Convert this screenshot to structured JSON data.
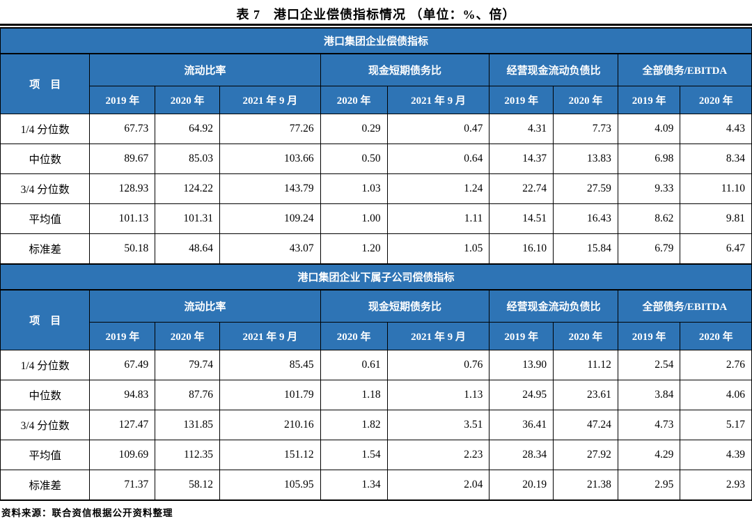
{
  "title": "表 7　港口企业偿债指标情况 （单位：%、倍）",
  "source": "资料来源：联合资信根据公开资料整理",
  "colors": {
    "header_blue": "#2E74B5",
    "border": "#000000",
    "header_text": "#FFFFFF"
  },
  "columns": {
    "item": "项　目",
    "groups": [
      {
        "label": "流动比率",
        "years": [
          "2019 年",
          "2020 年",
          "2021 年 9 月"
        ]
      },
      {
        "label": "现金短期债务比",
        "years": [
          "2020 年",
          "2021 年 9 月"
        ]
      },
      {
        "label": "经营现金流动负债比",
        "years": [
          "2019 年",
          "2020 年"
        ]
      },
      {
        "label": "全部债务/EBITDA",
        "years": [
          "2019 年",
          "2020 年"
        ]
      }
    ]
  },
  "sections": [
    {
      "header": "港口集团企业偿债指标",
      "rows": [
        {
          "label": "1/4 分位数",
          "values": [
            "67.73",
            "64.92",
            "77.26",
            "0.29",
            "0.47",
            "4.31",
            "7.73",
            "4.09",
            "4.43"
          ]
        },
        {
          "label": "中位数",
          "values": [
            "89.67",
            "85.03",
            "103.66",
            "0.50",
            "0.64",
            "14.37",
            "13.83",
            "6.98",
            "8.34"
          ]
        },
        {
          "label": "3/4 分位数",
          "values": [
            "128.93",
            "124.22",
            "143.79",
            "1.03",
            "1.24",
            "22.74",
            "27.59",
            "9.33",
            "11.10"
          ]
        },
        {
          "label": "平均值",
          "values": [
            "101.13",
            "101.31",
            "109.24",
            "1.00",
            "1.11",
            "14.51",
            "16.43",
            "8.62",
            "9.81"
          ]
        },
        {
          "label": "标准差",
          "values": [
            "50.18",
            "48.64",
            "43.07",
            "1.20",
            "1.05",
            "16.10",
            "15.84",
            "6.79",
            "6.47"
          ]
        }
      ]
    },
    {
      "header": "港口集团企业下属子公司偿债指标",
      "rows": [
        {
          "label": "1/4 分位数",
          "values": [
            "67.49",
            "79.74",
            "85.45",
            "0.61",
            "0.76",
            "13.90",
            "11.12",
            "2.54",
            "2.76"
          ]
        },
        {
          "label": "中位数",
          "values": [
            "94.83",
            "87.76",
            "101.79",
            "1.18",
            "1.13",
            "24.95",
            "23.61",
            "3.84",
            "4.06"
          ]
        },
        {
          "label": "3/4 分位数",
          "values": [
            "127.47",
            "131.85",
            "210.16",
            "1.82",
            "3.51",
            "36.41",
            "47.24",
            "4.73",
            "5.17"
          ]
        },
        {
          "label": "平均值",
          "values": [
            "109.69",
            "112.35",
            "151.12",
            "1.54",
            "2.23",
            "28.34",
            "27.92",
            "4.29",
            "4.39"
          ]
        },
        {
          "label": "标准差",
          "values": [
            "71.37",
            "58.12",
            "105.95",
            "1.34",
            "2.04",
            "20.19",
            "21.38",
            "2.95",
            "2.93"
          ]
        }
      ]
    }
  ]
}
